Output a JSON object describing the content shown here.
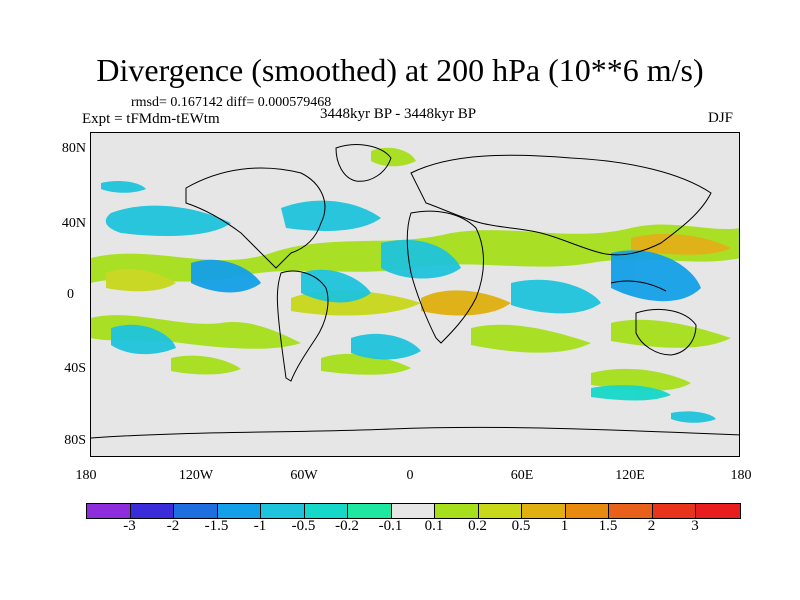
{
  "title": "Divergence (smoothed) at 200 hPa (10**6 m/s)",
  "stats": "rmsd= 0.167142 diff= 0.000579468",
  "expt": "Expt = tFMdm-tEWtm",
  "period": "3448kyr BP - 3448kyr BP",
  "season": "DJF",
  "y_ticks": [
    "80N",
    "40N",
    "0",
    "40S",
    "80S"
  ],
  "x_ticks": [
    "180",
    "120W",
    "60W",
    "0",
    "60E",
    "120E",
    "180"
  ],
  "colorbar": {
    "labels": [
      "-3",
      "-2",
      "-1.5",
      "-1",
      "-0.5",
      "-0.2",
      "-0.1",
      "0.1",
      "0.2",
      "0.5",
      "1",
      "1.5",
      "2",
      "3"
    ],
    "colors": [
      "#8e2ddc",
      "#3a2cd8",
      "#1f6ee0",
      "#14a0e8",
      "#1ec4dc",
      "#16d8c8",
      "#1ee8a0",
      "#e6e6e6",
      "#a6e01c",
      "#c8d81a",
      "#e0b010",
      "#e88a10",
      "#e8601a",
      "#e8341a",
      "#e81e1e"
    ]
  },
  "colors": {
    "background": "#e6e6e6",
    "coast": "#000000"
  }
}
